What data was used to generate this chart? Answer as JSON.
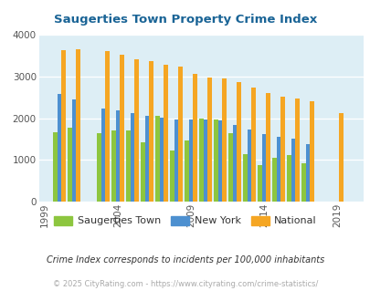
{
  "title": "Saugerties Town Property Crime Index",
  "title_color": "#1a6496",
  "subtitle": "Crime Index corresponds to incidents per 100,000 inhabitants",
  "subtitle_color": "#333333",
  "footer": "© 2025 CityRating.com - https://www.cityrating.com/crime-statistics/",
  "footer_color": "#aaaaaa",
  "x_ticks": [
    1999,
    2004,
    2009,
    2014,
    2019
  ],
  "years_st": [
    2000,
    2001,
    2003,
    2004,
    2005,
    2006,
    2007,
    2008,
    2009,
    2010,
    2011,
    2012,
    2013,
    2014,
    2015,
    2016,
    2017
  ],
  "years_ny": [
    2000,
    2001,
    2003,
    2004,
    2005,
    2006,
    2007,
    2008,
    2009,
    2010,
    2011,
    2012,
    2013,
    2014,
    2015,
    2016,
    2017
  ],
  "years_na": [
    2000,
    2001,
    2003,
    2004,
    2005,
    2006,
    2007,
    2008,
    2009,
    2010,
    2011,
    2012,
    2013,
    2014,
    2015,
    2016,
    2017,
    2019
  ],
  "saugerties": [
    1670,
    1780,
    1650,
    1700,
    1700,
    1430,
    2060,
    1230,
    1460,
    2000,
    1970,
    1650,
    1130,
    880,
    1060,
    1110,
    920
  ],
  "new_york": [
    2580,
    2440,
    2230,
    2180,
    2110,
    2050,
    2010,
    1970,
    1960,
    1960,
    1940,
    1840,
    1720,
    1620,
    1560,
    1520,
    1380
  ],
  "national": [
    3620,
    3660,
    3600,
    3510,
    3400,
    3360,
    3280,
    3230,
    3050,
    2970,
    2940,
    2870,
    2740,
    2610,
    2510,
    2480,
    2400,
    2110
  ],
  "green_color": "#8dc63f",
  "blue_color": "#4d90d0",
  "orange_color": "#f5a623",
  "bg_color": "#ddeef5",
  "ylim": [
    0,
    4000
  ],
  "bar_width": 0.28,
  "xlim_left": 1998.6,
  "xlim_right": 2020.8,
  "legend_labels": [
    "Saugerties Town",
    "New York",
    "National"
  ]
}
